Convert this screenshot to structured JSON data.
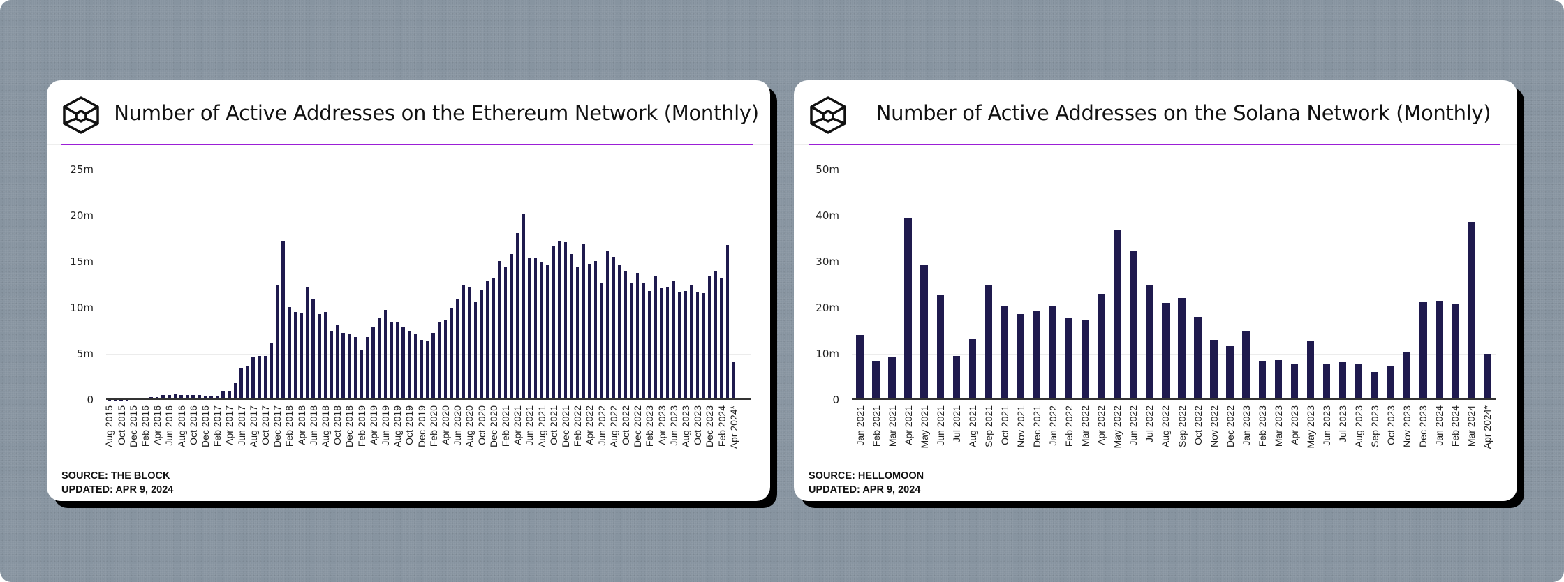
{
  "colors": {
    "bar": "#1f1a4e",
    "accent": "#9b1fd6",
    "background": "#8794a0"
  },
  "chart_data": [
    {
      "type": "bar",
      "title": "Number of Active Addresses on the Ethereum Network (Monthly)",
      "xlabel": "",
      "ylabel": "",
      "ylim": [
        0,
        25
      ],
      "yunit": "m",
      "yticks": [
        "0",
        "5m",
        "10m",
        "15m",
        "20m",
        "25m"
      ],
      "ytick_values": [
        0,
        5,
        10,
        15,
        20,
        25
      ],
      "first_month": "Aug 2015",
      "x_tick_every": 2,
      "x_tick_labels": [
        "Aug 2015",
        "Oct 2015",
        "Dec 2015",
        "Feb 2016",
        "Apr 2016",
        "Jun 2016",
        "Aug 2016",
        "Oct 2016",
        "Dec 2016",
        "Feb 2017",
        "Apr 2017",
        "Jun 2017",
        "Aug 2017",
        "Oct 2017",
        "Dec 2017",
        "Feb 2018",
        "Apr 2018",
        "Jun 2018",
        "Aug 2018",
        "Oct 2018",
        "Dec 2018",
        "Feb 2019",
        "Apr 2019",
        "Jun 2019",
        "Aug 2019",
        "Oct 2019",
        "Dec 2019",
        "Feb 2020",
        "Apr 2020",
        "Jun 2020",
        "Aug 2020",
        "Oct 2020",
        "Dec 2020",
        "Feb 2021",
        "Apr 2021",
        "Jun 2021",
        "Aug 2021",
        "Oct 2021",
        "Dec 2021",
        "Feb 2022",
        "Apr 2022",
        "Jun 2022",
        "Aug 2022",
        "Oct 2022",
        "Dec 2022",
        "Feb 2023",
        "Apr 2023",
        "Jun 2023",
        "Aug 2023",
        "Oct 2023",
        "Dec 2023",
        "Feb 2024",
        "Apr 2024*"
      ],
      "values": [
        0.02,
        0.02,
        0.02,
        0.03,
        0.05,
        0.1,
        0.1,
        0.3,
        0.3,
        0.55,
        0.55,
        0.68,
        0.55,
        0.55,
        0.55,
        0.55,
        0.43,
        0.43,
        0.43,
        0.9,
        1.0,
        1.8,
        3.5,
        3.75,
        4.65,
        4.75,
        4.75,
        6.25,
        12.4,
        17.3,
        10.1,
        9.55,
        9.45,
        12.3,
        10.9,
        9.35,
        9.55,
        7.5,
        8.1,
        7.3,
        7.2,
        6.85,
        5.35,
        6.85,
        7.85,
        8.9,
        9.8,
        8.4,
        8.4,
        7.95,
        7.5,
        7.2,
        6.5,
        6.4,
        7.3,
        8.4,
        8.75,
        9.9,
        10.9,
        12.4,
        12.3,
        10.6,
        12.0,
        12.9,
        13.2,
        15.1,
        14.5,
        15.8,
        18.1,
        20.2,
        15.4,
        15.4,
        14.9,
        14.6,
        16.75,
        17.3,
        17.1,
        15.8,
        14.5,
        17.0,
        14.8,
        15.1,
        12.75,
        16.2,
        15.5,
        14.6,
        14.0,
        12.75,
        13.8,
        12.65,
        11.85,
        13.45,
        12.2,
        12.3,
        12.9,
        11.75,
        11.85,
        12.5,
        11.75,
        11.6,
        13.45,
        14.0,
        13.2,
        16.85,
        4.1
      ],
      "source": "SOURCE: THE BLOCK",
      "updated": "UPDATED: APR 9, 2024"
    },
    {
      "type": "bar",
      "title": "Number of Active Addresses on the Solana Network (Monthly)",
      "xlabel": "",
      "ylabel": "",
      "ylim": [
        0,
        50
      ],
      "yunit": "m",
      "yticks": [
        "0",
        "10m",
        "20m",
        "30m",
        "40m",
        "50m"
      ],
      "ytick_values": [
        0,
        10,
        20,
        30,
        40,
        50
      ],
      "x_tick_every": 1,
      "x_tick_labels": [
        "Jan 2021",
        "Feb 2021",
        "Mar 2021",
        "Apr 2021",
        "May 2021",
        "Jun 2021",
        "Jul 2021",
        "Aug 2021",
        "Sep 2021",
        "Oct 2021",
        "Nov 2021",
        "Dec 2021",
        "Jan 2022",
        "Feb 2022",
        "Mar 2022",
        "Apr 2022",
        "May 2022",
        "Jun 2022",
        "Jul 2022",
        "Aug 2022",
        "Sep 2022",
        "Oct 2022",
        "Nov 2022",
        "Dec 2022",
        "Jan 2023",
        "Feb 2023",
        "Mar 2023",
        "Apr 2023",
        "May 2023",
        "Jun 2023",
        "Jul 2023",
        "Aug 2023",
        "Sep 2023",
        "Oct 2023",
        "Nov 2023",
        "Dec 2023",
        "Jan 2024",
        "Feb 2024",
        "Mar 2024",
        "Apr 2024*"
      ],
      "values": [
        14.1,
        8.4,
        9.3,
        39.5,
        29.2,
        22.8,
        9.5,
        13.2,
        24.8,
        20.5,
        18.7,
        19.35,
        20.5,
        17.8,
        17.3,
        23.0,
        37.0,
        32.2,
        25.0,
        21.0,
        22.1,
        18.0,
        13.0,
        11.6,
        15.0,
        8.4,
        8.6,
        7.7,
        12.75,
        7.7,
        8.15,
        7.95,
        6.1,
        7.25,
        10.4,
        21.2,
        21.4,
        20.7,
        38.6,
        10.0
      ],
      "source": "SOURCE: HELLOMOON",
      "updated": "UPDATED: APR 9, 2024"
    }
  ]
}
